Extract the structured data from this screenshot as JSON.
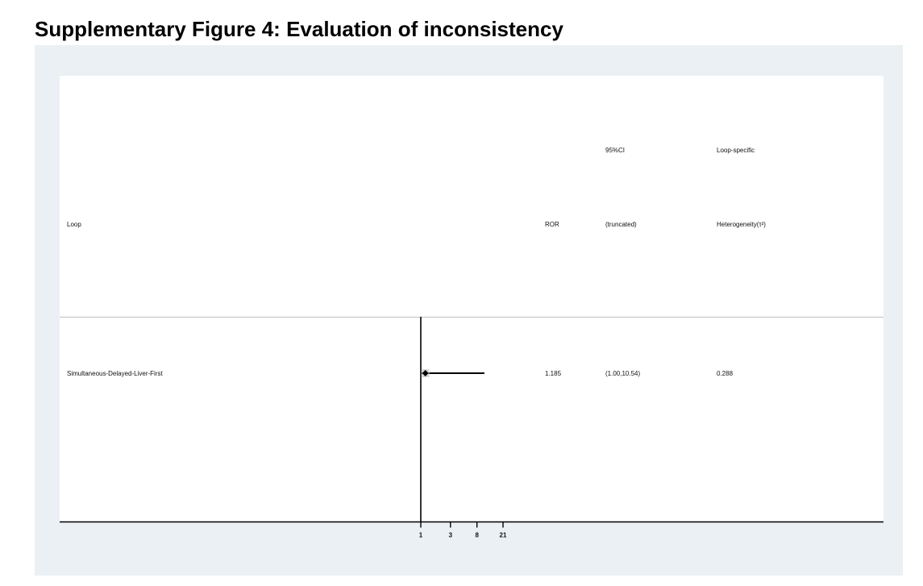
{
  "page": {
    "title": "Supplementary Figure 4: Evaluation of inconsistency"
  },
  "colors": {
    "frame_background": "#eaf0f3",
    "plot_background": "#ffffff",
    "ink": "#000000",
    "separator": "#c8c8c8",
    "marker_halo": "#c8c8c8"
  },
  "chart_data": {
    "type": "forest",
    "x_scale": "log",
    "x_ticks": [
      1,
      3,
      8,
      21
    ],
    "x_tick_labels": [
      "1",
      "3",
      "8",
      "21"
    ],
    "xlim": [
      1,
      21
    ],
    "reference_line": 1,
    "grid": false,
    "columns": {
      "loop": "Loop",
      "ror": "ROR",
      "ci_line1": "95%CI",
      "ci_line2": "(truncated)",
      "het_line1": "Loop-specific",
      "het_line2": "Heterogeneity(τ²)"
    },
    "rows": [
      {
        "loop": "Simultaneous-Delayed-Liver-First",
        "ror": 1.185,
        "ci_lower": 1.0,
        "ci_upper": 10.54,
        "ror_text": "1.185",
        "ci_text": "(1.00,10.54)",
        "het_text": "0.288"
      }
    ]
  }
}
